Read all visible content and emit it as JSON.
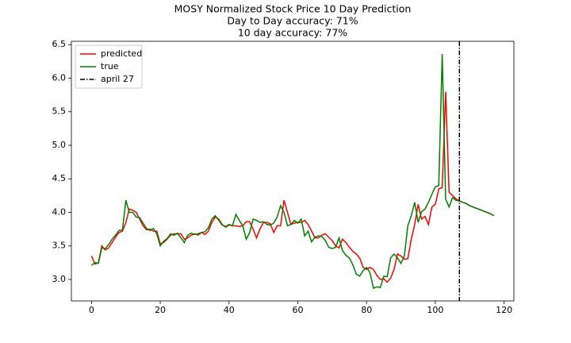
{
  "chart_data": {
    "type": "line",
    "title": [
      "MOSY Normalized Stock Price 10 Day Prediction",
      "Day to Day accuracy: 71%",
      "10 day accuracy: 77%"
    ],
    "x": [
      0,
      1,
      2,
      3,
      4,
      5,
      6,
      7,
      8,
      9,
      10,
      11,
      12,
      13,
      14,
      15,
      16,
      17,
      18,
      19,
      20,
      21,
      22,
      23,
      24,
      25,
      26,
      27,
      28,
      29,
      30,
      31,
      32,
      33,
      34,
      35,
      36,
      37,
      38,
      39,
      40,
      41,
      42,
      43,
      44,
      45,
      46,
      47,
      48,
      49,
      50,
      51,
      52,
      53,
      54,
      55,
      56,
      57,
      58,
      59,
      60,
      61,
      62,
      63,
      64,
      65,
      66,
      67,
      68,
      69,
      70,
      71,
      72,
      73,
      74,
      75,
      76,
      77,
      78,
      79,
      80,
      81,
      82,
      83,
      84,
      85,
      86,
      87,
      88,
      89,
      90,
      91,
      92,
      93,
      94,
      95,
      96,
      97,
      98,
      99,
      100,
      101,
      102,
      103,
      104,
      105,
      106,
      107,
      108,
      109,
      110,
      111,
      112,
      113,
      114,
      115,
      116,
      117
    ],
    "series": [
      {
        "name": "predicted",
        "color": "#ff0000",
        "values": [
          3.35,
          3.23,
          3.25,
          3.5,
          3.44,
          3.47,
          3.55,
          3.63,
          3.7,
          3.72,
          3.85,
          4.05,
          4.03,
          4.0,
          3.9,
          3.8,
          3.74,
          3.75,
          3.72,
          3.72,
          3.53,
          3.55,
          3.6,
          3.66,
          3.68,
          3.68,
          3.68,
          3.6,
          3.62,
          3.66,
          3.68,
          3.66,
          3.7,
          3.67,
          3.72,
          3.85,
          3.93,
          3.9,
          3.82,
          3.78,
          3.81,
          3.8,
          3.8,
          3.79,
          3.8,
          3.86,
          3.86,
          3.75,
          3.62,
          3.75,
          3.85,
          3.85,
          3.83,
          3.7,
          3.8,
          3.8,
          4.18,
          4.0,
          3.82,
          3.84,
          3.85,
          3.85,
          3.88,
          3.82,
          3.72,
          3.62,
          3.62,
          3.66,
          3.68,
          3.63,
          3.58,
          3.5,
          3.47,
          3.6,
          3.55,
          3.48,
          3.42,
          3.38,
          3.32,
          3.18,
          3.15,
          3.18,
          3.15,
          3.06,
          3.0,
          3.01,
          2.96,
          3.02,
          3.15,
          3.38,
          3.35,
          3.3,
          3.31,
          3.6,
          3.82,
          4.12,
          3.9,
          3.94,
          3.82,
          4.08,
          4.12,
          4.35,
          4.37,
          5.8,
          4.3,
          4.25,
          4.2,
          4.17,
          4.15,
          4.13,
          4.1,
          4.08,
          4.06,
          4.04,
          4.02,
          4.0,
          3.98,
          3.95
        ]
      },
      {
        "name": "true",
        "color": "#008000",
        "values": [
          3.21,
          3.25,
          3.24,
          3.47,
          3.46,
          3.52,
          3.6,
          3.66,
          3.73,
          3.74,
          4.18,
          4.0,
          4.0,
          3.93,
          3.92,
          3.84,
          3.76,
          3.73,
          3.76,
          3.68,
          3.5,
          3.57,
          3.61,
          3.68,
          3.66,
          3.69,
          3.62,
          3.55,
          3.66,
          3.69,
          3.67,
          3.68,
          3.7,
          3.71,
          3.77,
          3.9,
          3.95,
          3.88,
          3.81,
          3.79,
          3.82,
          3.8,
          3.97,
          3.88,
          3.8,
          3.6,
          3.7,
          3.9,
          3.88,
          3.85,
          3.86,
          3.82,
          3.81,
          3.84,
          3.93,
          4.1,
          4.0,
          3.8,
          3.82,
          3.88,
          3.84,
          3.9,
          3.65,
          3.72,
          3.56,
          3.63,
          3.65,
          3.64,
          3.58,
          3.48,
          3.46,
          3.48,
          3.62,
          3.43,
          3.36,
          3.32,
          3.22,
          3.08,
          3.05,
          3.13,
          3.18,
          3.1,
          2.87,
          2.89,
          2.88,
          3.05,
          3.04,
          3.32,
          3.38,
          3.32,
          3.24,
          3.35,
          3.8,
          3.95,
          4.15,
          3.85,
          4.01,
          4.05,
          4.15,
          4.27,
          4.38,
          4.4,
          6.36,
          4.2,
          4.08,
          4.22,
          4.18,
          4.17,
          4.15,
          4.13,
          4.1,
          4.08,
          4.06,
          4.04,
          4.02,
          4.0,
          3.98,
          3.95
        ]
      }
    ],
    "vline": {
      "x": 107,
      "name": "april 27",
      "color": "#000000"
    },
    "xlim": [
      -5.85,
      122.85
    ],
    "ylim": [
      2.68,
      6.55
    ],
    "xticks": [
      0,
      20,
      40,
      60,
      80,
      100,
      120
    ],
    "yticks": [
      {
        "value": 3,
        "label": "3.0"
      },
      3.5,
      {
        "value": 4,
        "label": "4.0"
      },
      4.5,
      {
        "value": 5,
        "label": "5.0"
      },
      5.5,
      {
        "value": 6,
        "label": "6.0"
      },
      6.5
    ],
    "grid": false,
    "legend": "upper left"
  }
}
